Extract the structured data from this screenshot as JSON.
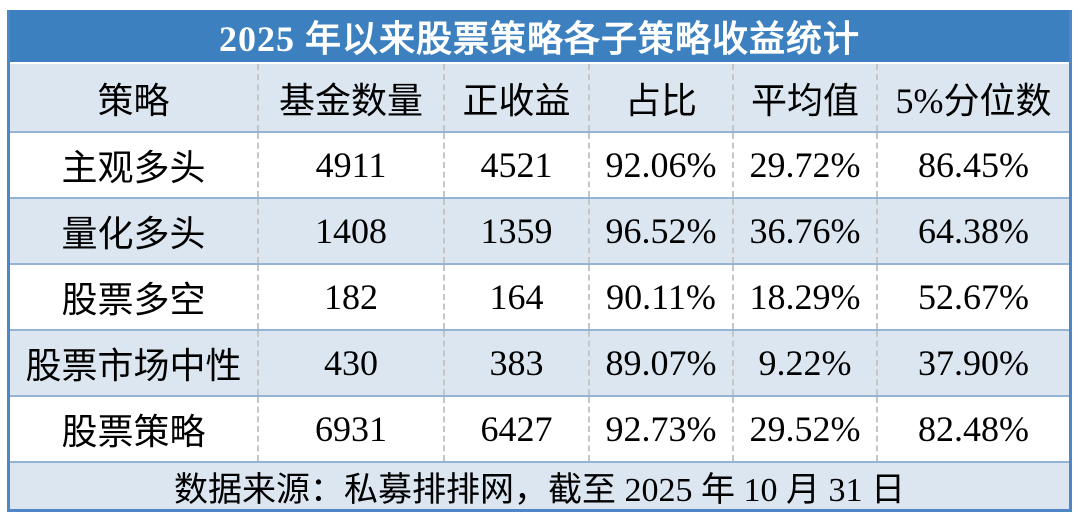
{
  "chart_data": {
    "type": "table",
    "title": "2025 年以来股票策略各子策略收益统计",
    "columns": [
      "策略",
      "基金数量",
      "正收益",
      "占比",
      "平均值",
      "5%分位数"
    ],
    "rows": [
      [
        "主观多头",
        "4911",
        "4521",
        "92.06%",
        "29.72%",
        "86.45%"
      ],
      [
        "量化多头",
        "1408",
        "1359",
        "96.52%",
        "36.76%",
        "64.38%"
      ],
      [
        "股票多空",
        "182",
        "164",
        "90.11%",
        "18.29%",
        "52.67%"
      ],
      [
        "股票市场中性",
        "430",
        "383",
        "89.07%",
        "9.22%",
        "37.90%"
      ],
      [
        "股票策略",
        "6931",
        "6427",
        "92.73%",
        "29.52%",
        "82.48%"
      ]
    ],
    "rows_numeric": [
      {
        "strategy": "主观多头",
        "fund_count": 4911,
        "positive_count": 4521,
        "positive_ratio_pct": 92.06,
        "average_return_pct": 29.72,
        "percentile_5_pct": 86.45
      },
      {
        "strategy": "量化多头",
        "fund_count": 1408,
        "positive_count": 1359,
        "positive_ratio_pct": 96.52,
        "average_return_pct": 36.76,
        "percentile_5_pct": 64.38
      },
      {
        "strategy": "股票多空",
        "fund_count": 182,
        "positive_count": 164,
        "positive_ratio_pct": 90.11,
        "average_return_pct": 18.29,
        "percentile_5_pct": 52.67
      },
      {
        "strategy": "股票市场中性",
        "fund_count": 430,
        "positive_count": 383,
        "positive_ratio_pct": 89.07,
        "average_return_pct": 9.22,
        "percentile_5_pct": 37.9
      },
      {
        "strategy": "股票策略",
        "fund_count": 6931,
        "positive_count": 6427,
        "positive_ratio_pct": 92.73,
        "average_return_pct": 29.52,
        "percentile_5_pct": 82.48
      }
    ],
    "source_note": "数据来源：私募排排网，截至 2025 年 10 月 31 日"
  },
  "colors": {
    "title_bar_bg": "#3C80C0",
    "title_text": "#FFFFFF",
    "band_row_bg": "#DCE6F1",
    "plain_row_bg": "#FFFFFF",
    "row_separator": "#95B3D7",
    "outer_border": "#4F86C6",
    "column_divider_dashed": "#C6C6C6",
    "body_text": "#000000"
  }
}
